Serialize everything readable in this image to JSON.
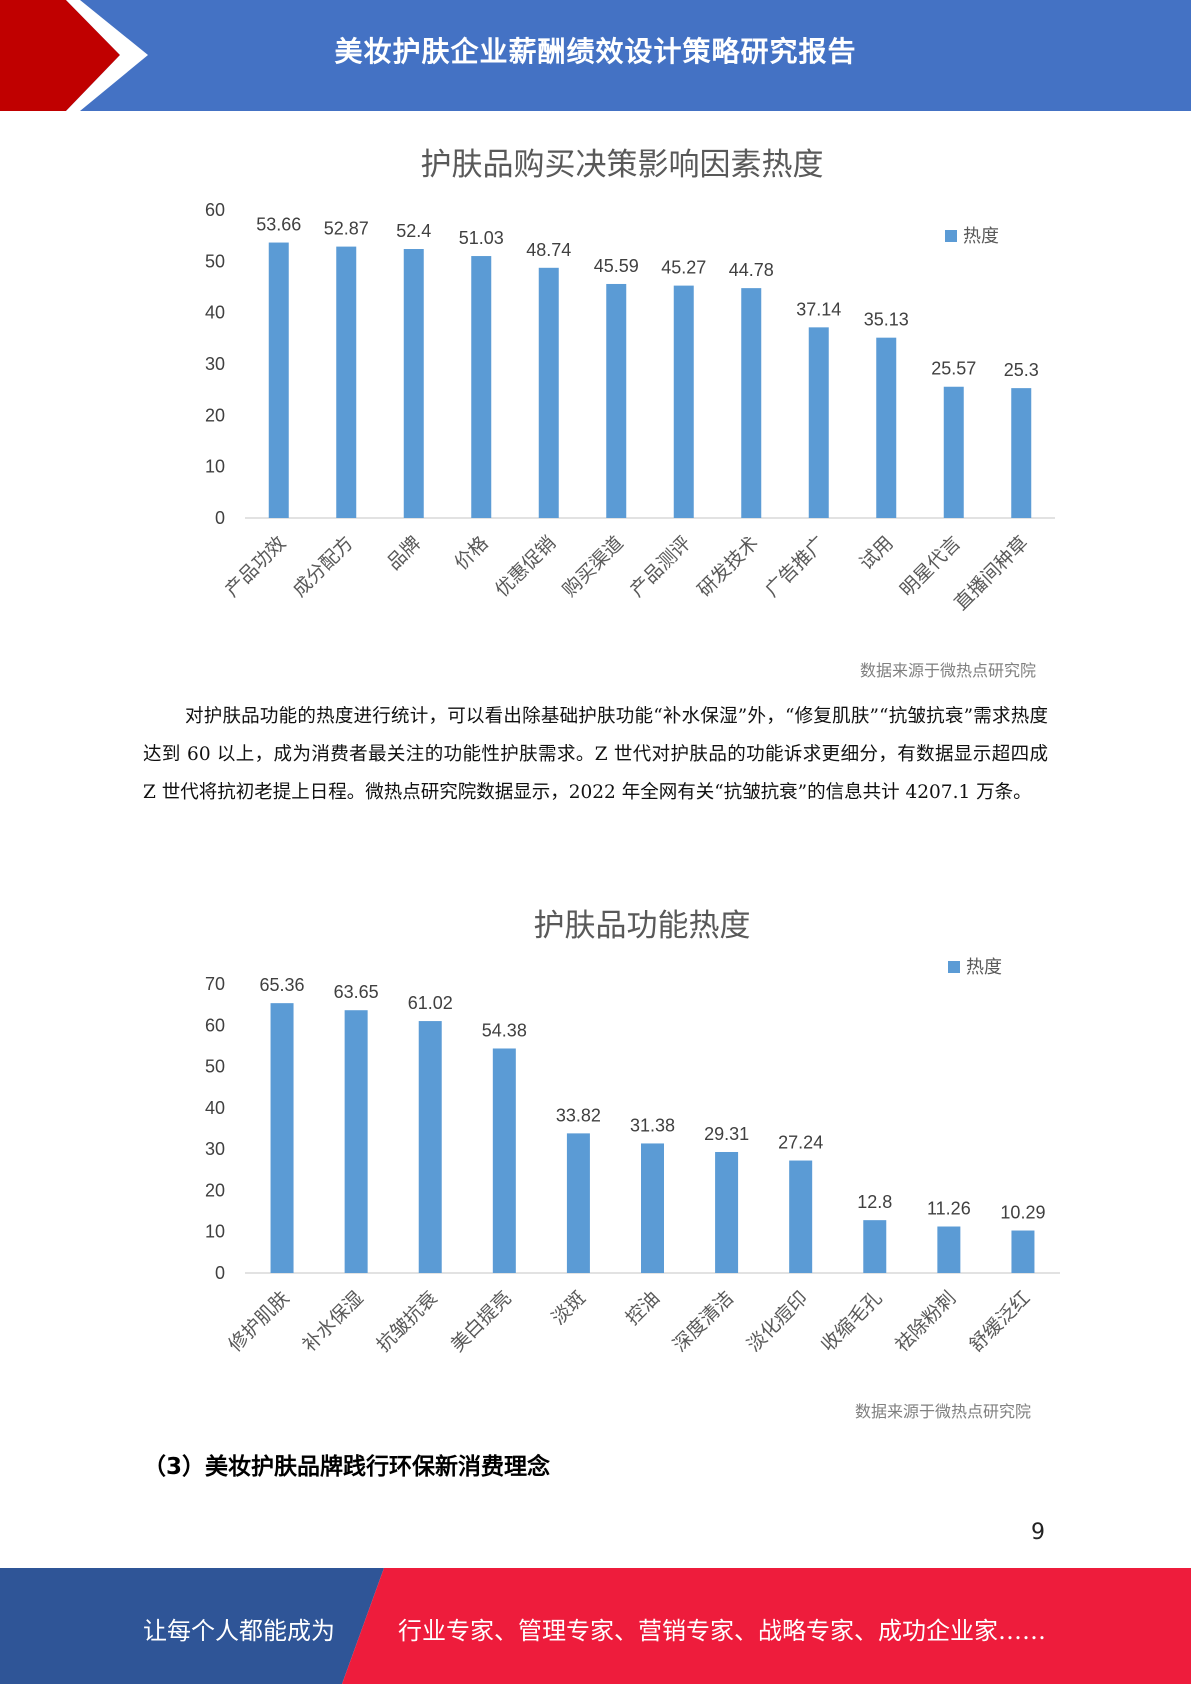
{
  "header": {
    "title": "美妆护肤企业薪酬绩效设计策略研究报告"
  },
  "chart_data": [
    {
      "type": "bar",
      "title": "护肤品购买决策影响因素热度",
      "categories": [
        "产品功效",
        "成分配方",
        "品牌",
        "价格",
        "优惠促销",
        "购买渠道",
        "产品测评",
        "研发技术",
        "广告推广",
        "试用",
        "明星代言",
        "直播间种草"
      ],
      "series": [
        {
          "name": "热度",
          "values": [
            53.66,
            52.87,
            52.4,
            51.03,
            48.74,
            45.59,
            45.27,
            44.78,
            37.14,
            35.13,
            25.57,
            25.3
          ]
        }
      ],
      "value_labels": [
        "53.66",
        "52.87",
        "52.4",
        "51.03",
        "48.74",
        "45.59",
        "45.27",
        "44.78",
        "37.14",
        "35.13",
        "25.57",
        "25.3"
      ],
      "ylim": [
        0,
        60
      ],
      "yticks": [
        "0",
        "10",
        "20",
        "30",
        "40",
        "50",
        "60"
      ],
      "legend": "top-right",
      "color": "#5b9bd5",
      "source": "数据来源于微热点研究院"
    },
    {
      "type": "bar",
      "title": "护肤品功能热度",
      "categories": [
        "修护肌肤",
        "补水保湿",
        "抗皱抗衰",
        "美白提亮",
        "淡斑",
        "控油",
        "深度清洁",
        "淡化痘印",
        "收缩毛孔",
        "祛除粉刺",
        "舒缓泛红"
      ],
      "series": [
        {
          "name": "热度",
          "values": [
            65.36,
            63.65,
            61.02,
            54.38,
            33.82,
            31.38,
            29.31,
            27.24,
            12.8,
            11.26,
            10.29
          ]
        }
      ],
      "value_labels": [
        "65.36",
        "63.65",
        "61.02",
        "54.38",
        "33.82",
        "31.38",
        "29.31",
        "27.24",
        "12.8",
        "11.26",
        "10.29"
      ],
      "ylim": [
        0,
        70
      ],
      "yticks": [
        "0",
        "10",
        "20",
        "30",
        "40",
        "50",
        "60",
        "70"
      ],
      "legend": "top-right",
      "color": "#5b9bd5",
      "source": "数据来源于微热点研究院"
    }
  ],
  "paragraph": "对护肤品功能的热度进行统计，可以看出除基础护肤功能“补水保湿”外，“修复肌肤”“抗皱抗衰”需求热度达到 60 以上，成为消费者最关注的功能性护肤需求。Z 世代对护肤品的功能诉求更细分，有数据显示超四成 Z 世代将抗初老提上日程。微热点研究院数据显示，2022 年全网有关“抗皱抗衰”的信息共计 4207.1 万条。",
  "section_title": "（3）美妆护肤品牌践行环保新消费理念",
  "page_number": "9",
  "footer": {
    "left_text": "让每个人都能成为",
    "right_text": "行业专家、管理专家、营销专家、战略专家、成功企业家……"
  },
  "colors": {
    "header_blue": "#4472c4",
    "accent_red": "#c00000",
    "footer_blue": "#2f5597",
    "footer_red": "#ee1c3c"
  }
}
